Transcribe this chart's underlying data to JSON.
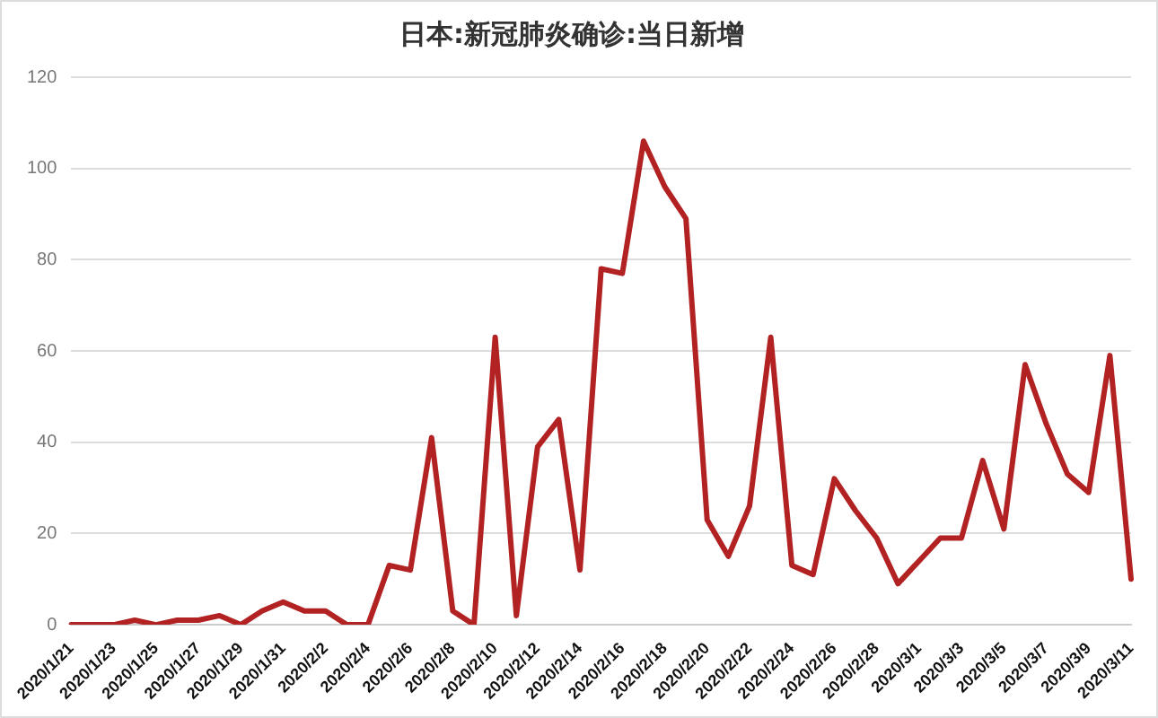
{
  "chart_data": {
    "type": "line",
    "title": "日本:新冠肺炎确诊:当日新增",
    "categories": [
      "2020/1/21",
      null,
      "2020/1/23",
      null,
      "2020/1/25",
      null,
      "2020/1/27",
      null,
      "2020/1/29",
      null,
      "2020/1/31",
      null,
      "2020/2/2",
      null,
      "2020/2/4",
      null,
      "2020/2/6",
      null,
      "2020/2/8",
      null,
      "2020/2/10",
      null,
      "2020/2/12",
      null,
      "2020/2/14",
      null,
      "2020/2/16",
      null,
      "2020/2/18",
      null,
      "2020/2/20",
      null,
      "2020/2/22",
      null,
      "2020/2/24",
      null,
      "2020/2/26",
      null,
      "2020/2/28",
      null,
      "2020/3/1",
      null,
      "2020/3/3",
      null,
      "2020/3/5",
      null,
      "2020/3/7",
      null,
      "2020/3/9",
      null,
      "2020/3/11"
    ],
    "series": [
      {
        "color": "#b22222",
        "values": [
          0,
          0,
          0,
          1,
          0,
          1,
          1,
          2,
          0,
          3,
          5,
          3,
          3,
          0,
          0,
          13,
          12,
          41,
          3,
          0,
          63,
          2,
          39,
          45,
          12,
          78,
          77,
          106,
          96,
          89,
          23,
          15,
          26,
          63,
          13,
          11,
          32,
          25,
          19,
          9,
          14,
          19,
          19,
          36,
          21,
          57,
          44,
          33,
          29,
          59,
          10
        ]
      }
    ],
    "ylim": [
      0,
      120
    ],
    "yticks": [
      0,
      20,
      40,
      60,
      80,
      100,
      120
    ],
    "grid": "y",
    "marker": "none",
    "line_style": "solid"
  }
}
